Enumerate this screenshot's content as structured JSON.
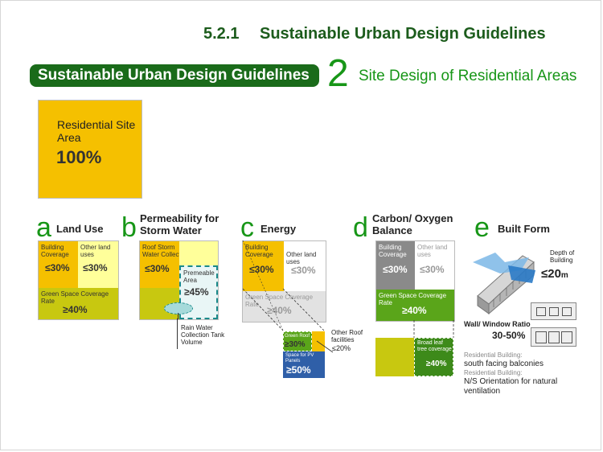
{
  "header": {
    "section": "5.2.1",
    "title": "Sustainable Urban Design Guidelines"
  },
  "banner": {
    "text": "Sustainable Urban Design Guidelines"
  },
  "chapter": {
    "number": "2",
    "title": "Site Design of Residential Areas"
  },
  "site": {
    "label": "Residential Site Area",
    "percent": "100%"
  },
  "panels": {
    "a": {
      "letter": "a",
      "title": "Land Use",
      "building_coverage": "Building Coverage",
      "building_value": "≤30%",
      "other_land": "Other land uses",
      "other_value": "≤30%",
      "green": "Green Space Coverage Rate",
      "green_value": "≥40%"
    },
    "b": {
      "letter": "b",
      "title": "Permeability for Storm Water",
      "roof": "Roof Storm Water Collection",
      "roof_value": "≤30%",
      "premeable": "Premeable Area",
      "premeable_value": "≥45%",
      "tank": "Rain Water Collection Tank Volume"
    },
    "c": {
      "letter": "c",
      "title": "Energy",
      "building_coverage": "Building Coverage",
      "building_value": "≤30%",
      "other_land": "Other land uses",
      "other_value": "≤30%",
      "green": "Green Space Coverage Rate",
      "green_value": "≥40%",
      "green_roof": "Green Roof",
      "green_roof_value": "≥30%",
      "pv": "Space for PV Panels",
      "pv_value": "≥50%",
      "other_roof": "Other Roof facilities",
      "other_roof_value": "≤20%"
    },
    "d": {
      "letter": "d",
      "title": "Carbon/ Oxygen Balance",
      "building_coverage": "Building Coverage",
      "building_value": "≤30%",
      "other_land": "Other land uses",
      "other_value": "≤30%",
      "green": "Green Space Coverage Rate",
      "green_value": "≥40%",
      "broad_leaf": "Broad leaf tree coverage",
      "broad_leaf_value": "≥40%"
    },
    "e": {
      "letter": "e",
      "title": "Built Form",
      "depth_label": "Depth of Building",
      "depth_value": "≤20",
      "depth_unit": "m",
      "wwr_label": "Wall/ Window Ratio",
      "wwr_value": "30-50%",
      "res1_label": "Residential Building:",
      "res1_value": "south facing balconies",
      "res2_label": "Residential Building:",
      "res2_value": "N/S Orientation for natural ventilation"
    }
  },
  "colors": {
    "green_dark": "#1a6b1a",
    "green_accent": "#179617",
    "yellow": "#f5c000",
    "olive": "#c8c810",
    "blue": "#2f5fa8"
  }
}
